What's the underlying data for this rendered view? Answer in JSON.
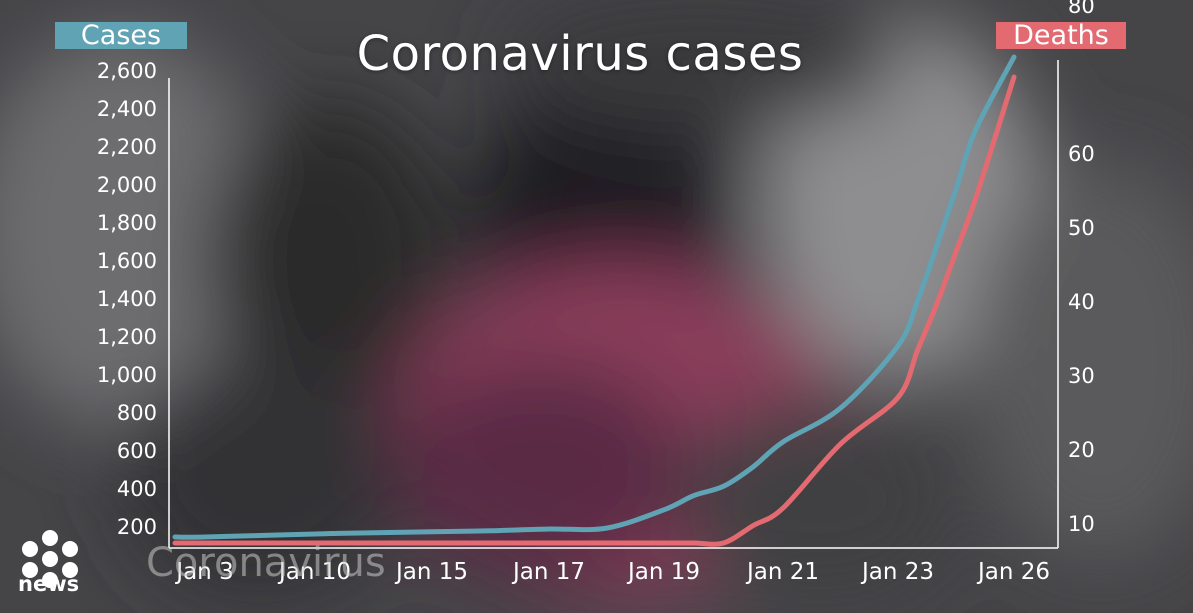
{
  "chart_data": {
    "type": "line",
    "title": "Coronavirus cases",
    "categories": [
      "Jan 3",
      "Jan 10",
      "Jan 15",
      "Jan 17",
      "Jan 19",
      "Jan 21",
      "Jan 23",
      "Jan 26"
    ],
    "x": [
      1,
      3,
      10,
      11,
      15,
      16,
      17,
      18,
      19,
      19.5,
      20,
      20.5,
      21,
      22,
      23,
      23.5,
      24,
      24.5,
      25,
      26
    ],
    "series": [
      {
        "name": "Cases",
        "axis": "left",
        "color": "#5fa3b5",
        "values": [
          45,
          45,
          62,
          65,
          75,
          80,
          90,
          95,
          198,
          278,
          330,
          440,
          580,
          770,
          1120,
          1370,
          1680,
          2000,
          2330,
          2744
        ]
      },
      {
        "name": "Deaths",
        "axis": "right",
        "color": "#e46a72",
        "values": [
          0,
          0,
          0,
          0,
          0,
          0,
          0,
          0,
          0,
          0,
          0,
          3,
          6,
          17,
          25,
          33,
          41,
          50,
          59,
          80
        ]
      }
    ],
    "y_left": {
      "label": "Cases",
      "ticks": [
        "200",
        "400",
        "600",
        "800",
        "1,000",
        "1,200",
        "1,400",
        "1,600",
        "1,800",
        "2,000",
        "2,200",
        "2,400",
        "2,600"
      ],
      "range": [
        0,
        2600
      ]
    },
    "y_right": {
      "label": "Deaths",
      "ticks": [
        "10",
        "20",
        "30",
        "40",
        "50",
        "60",
        "80"
      ],
      "range": [
        0,
        80
      ]
    },
    "grid": false,
    "legend": "top corners"
  },
  "branding": {
    "logo_word": "news",
    "watermark": "Coronavirus"
  }
}
